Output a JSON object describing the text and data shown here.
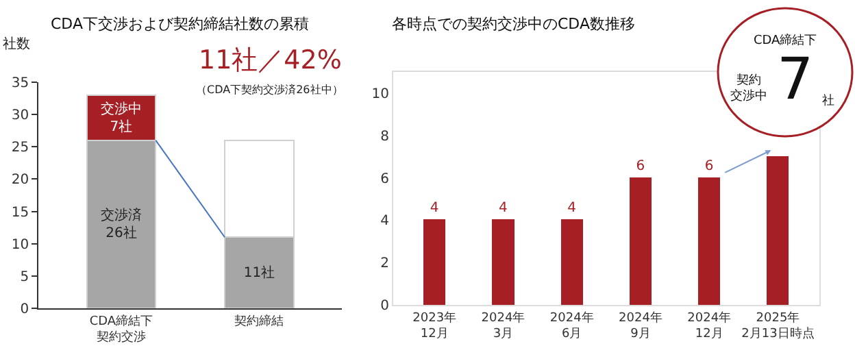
{
  "chart_data": [
    {
      "type": "bar",
      "stacked": true,
      "title": "CDA下交渉および契約締結社数の累積",
      "ylabel": "社数",
      "categories": [
        "CDA締結下契約交渉",
        "契約締結"
      ],
      "series": [
        {
          "color": "#a6a6a6",
          "values": [
            26,
            11
          ],
          "value_labels": [
            "交渉済\n26社",
            "11社"
          ]
        },
        {
          "color": "#a51f24",
          "values": [
            7,
            null
          ],
          "value_labels": [
            "交渉中\n7社",
            null
          ]
        },
        {
          "color": "#ffffff",
          "values": [
            null,
            15
          ]
        }
      ],
      "ylim": [
        0,
        35
      ],
      "yticks": [
        0,
        5,
        10,
        15,
        20,
        25,
        30,
        35
      ],
      "annotations": [
        "11社／42%",
        "（CDA下契約交渉済26社中）"
      ]
    },
    {
      "type": "bar",
      "title": "各時点での契約交渉中のCDA数推移",
      "categories": [
        "2023年\n12月",
        "2024年\n3月",
        "2024年\n6月",
        "2024年\n9月",
        "2024年\n12月",
        "2025年\n2月13日時点"
      ],
      "series": [
        {
          "color": "#a51f24",
          "values": [
            4,
            4,
            4,
            6,
            6,
            7
          ],
          "value_labels": [
            "4",
            "4",
            "4",
            "6",
            "6",
            null
          ]
        }
      ],
      "ylim": [
        0,
        11
      ],
      "yticks": [
        0,
        2,
        4,
        6,
        8,
        10
      ],
      "annotations": [
        "CDA締結下",
        "契約交渉中",
        "7",
        "社"
      ]
    }
  ]
}
